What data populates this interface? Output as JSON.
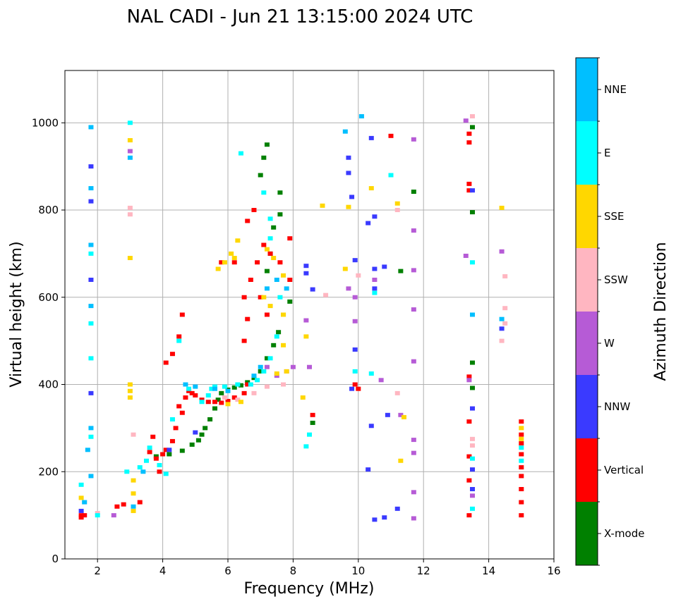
{
  "chart_data": {
    "type": "scatter",
    "title": "NAL CADI - Jun 21 13:15:00 2024 UTC",
    "xlabel": "Frequency (MHz)",
    "ylabel": "Virtual height (km)",
    "xlim": [
      1,
      16
    ],
    "ylim": [
      0,
      1120
    ],
    "xticks": [
      2,
      4,
      6,
      8,
      10,
      12,
      14,
      16
    ],
    "yticks": [
      0,
      200,
      400,
      600,
      800,
      1000
    ],
    "grid": true,
    "colorbar": {
      "label": "Azimuth Direction",
      "categories": [
        {
          "name": "X-mode",
          "color": "#008000"
        },
        {
          "name": "Vertical",
          "color": "#ff0000"
        },
        {
          "name": "NNW",
          "color": "#3a3aff"
        },
        {
          "name": "W",
          "color": "#b65bd6"
        },
        {
          "name": "SSW",
          "color": "#ffb6c1"
        },
        {
          "name": "SSE",
          "color": "#ffd700"
        },
        {
          "name": "E",
          "color": "#00ffff"
        },
        {
          "name": "NNE",
          "color": "#00bfff"
        }
      ]
    },
    "series": [
      {
        "name": "X-mode",
        "points": [
          [
            3.8,
            235
          ],
          [
            4.2,
            240
          ],
          [
            4.6,
            248
          ],
          [
            4.9,
            262
          ],
          [
            5.1,
            272
          ],
          [
            5.2,
            285
          ],
          [
            5.3,
            300
          ],
          [
            5.45,
            320
          ],
          [
            5.6,
            345
          ],
          [
            5.7,
            365
          ],
          [
            5.8,
            380
          ],
          [
            6.0,
            388
          ],
          [
            6.2,
            393
          ],
          [
            6.4,
            398
          ],
          [
            6.6,
            405
          ],
          [
            6.8,
            415
          ],
          [
            7.0,
            430
          ],
          [
            7.2,
            460
          ],
          [
            7.4,
            490
          ],
          [
            7.55,
            520
          ],
          [
            7.7,
            560
          ],
          [
            7.9,
            590
          ],
          [
            7.2,
            660
          ],
          [
            7.3,
            700
          ],
          [
            7.4,
            760
          ],
          [
            7.6,
            790
          ],
          [
            7.0,
            880
          ],
          [
            7.1,
            920
          ],
          [
            7.2,
            950
          ],
          [
            8.6,
            312
          ],
          [
            13.5,
            392
          ],
          [
            13.5,
            450
          ],
          [
            13.5,
            795
          ],
          [
            13.5,
            990
          ],
          [
            11.7,
            842
          ],
          [
            11.3,
            660
          ],
          [
            7.6,
            840
          ]
        ]
      },
      {
        "name": "Vertical",
        "points": [
          [
            1.5,
            100
          ],
          [
            1.5,
            95
          ],
          [
            3.3,
            130
          ],
          [
            3.6,
            245
          ],
          [
            3.7,
            280
          ],
          [
            3.8,
            230
          ],
          [
            3.9,
            200
          ],
          [
            4.0,
            240
          ],
          [
            4.1,
            250
          ],
          [
            4.3,
            270
          ],
          [
            4.4,
            300
          ],
          [
            4.5,
            350
          ],
          [
            4.6,
            335
          ],
          [
            4.7,
            370
          ],
          [
            4.8,
            385
          ],
          [
            4.9,
            380
          ],
          [
            5.0,
            375
          ],
          [
            5.2,
            365
          ],
          [
            5.4,
            360
          ],
          [
            5.6,
            360
          ],
          [
            5.8,
            358
          ],
          [
            6.0,
            362
          ],
          [
            6.2,
            370
          ],
          [
            6.5,
            380
          ],
          [
            6.6,
            400
          ],
          [
            6.5,
            500
          ],
          [
            6.6,
            550
          ],
          [
            6.5,
            600
          ],
          [
            6.7,
            640
          ],
          [
            6.9,
            680
          ],
          [
            7.1,
            720
          ],
          [
            7.3,
            700
          ],
          [
            7.6,
            680
          ],
          [
            7.0,
            600
          ],
          [
            7.2,
            560
          ],
          [
            7.9,
            640
          ],
          [
            7.9,
            735
          ],
          [
            6.6,
            775
          ],
          [
            6.8,
            800
          ],
          [
            5.8,
            680
          ],
          [
            6.2,
            680
          ],
          [
            4.3,
            470
          ],
          [
            4.1,
            450
          ],
          [
            4.5,
            510
          ],
          [
            4.6,
            560
          ],
          [
            13.4,
            100
          ],
          [
            13.4,
            180
          ],
          [
            13.4,
            235
          ],
          [
            13.4,
            315
          ],
          [
            13.4,
            418
          ],
          [
            13.4,
            845
          ],
          [
            13.4,
            860
          ],
          [
            13.4,
            955
          ],
          [
            13.4,
            975
          ],
          [
            11.0,
            970
          ],
          [
            15.0,
            100
          ],
          [
            15.0,
            130
          ],
          [
            15.0,
            160
          ],
          [
            15.0,
            190
          ],
          [
            15.0,
            210
          ],
          [
            15.0,
            240
          ],
          [
            15.0,
            265
          ],
          [
            15.0,
            285
          ],
          [
            15.0,
            315
          ],
          [
            1.6,
            100
          ],
          [
            9.9,
            400
          ],
          [
            10.0,
            390
          ],
          [
            8.6,
            330
          ],
          [
            2.6,
            120
          ],
          [
            2.8,
            125
          ]
        ]
      },
      {
        "name": "NNW",
        "points": [
          [
            1.5,
            110
          ],
          [
            1.8,
            900
          ],
          [
            1.8,
            820
          ],
          [
            1.8,
            640
          ],
          [
            1.8,
            380
          ],
          [
            4.2,
            250
          ],
          [
            5.0,
            290
          ],
          [
            8.4,
            672
          ],
          [
            8.4,
            655
          ],
          [
            8.6,
            618
          ],
          [
            9.7,
            885
          ],
          [
            9.8,
            830
          ],
          [
            9.9,
            685
          ],
          [
            9.9,
            480
          ],
          [
            10.3,
            770
          ],
          [
            10.5,
            785
          ],
          [
            10.5,
            665
          ],
          [
            10.8,
            670
          ],
          [
            10.5,
            620
          ],
          [
            10.4,
            965
          ],
          [
            9.7,
            920
          ],
          [
            10.4,
            305
          ],
          [
            10.9,
            330
          ],
          [
            10.5,
            90
          ],
          [
            10.8,
            95
          ],
          [
            11.2,
            115
          ],
          [
            13.5,
            160
          ],
          [
            13.5,
            205
          ],
          [
            13.5,
            345
          ],
          [
            13.5,
            845
          ],
          [
            14.4,
            528
          ],
          [
            10.3,
            205
          ],
          [
            9.8,
            390
          ]
        ]
      },
      {
        "name": "W",
        "points": [
          [
            2.5,
            100
          ],
          [
            3.0,
            935
          ],
          [
            7.5,
            420
          ],
          [
            7.8,
            430
          ],
          [
            8.0,
            440
          ],
          [
            8.5,
            440
          ],
          [
            8.4,
            547
          ],
          [
            9.7,
            620
          ],
          [
            9.9,
            545
          ],
          [
            9.9,
            600
          ],
          [
            10.5,
            640
          ],
          [
            10.7,
            410
          ],
          [
            11.3,
            330
          ],
          [
            11.7,
            962
          ],
          [
            11.7,
            753
          ],
          [
            11.7,
            662
          ],
          [
            11.7,
            572
          ],
          [
            11.7,
            453
          ],
          [
            11.7,
            273
          ],
          [
            11.7,
            243
          ],
          [
            11.7,
            153
          ],
          [
            11.7,
            93
          ],
          [
            13.3,
            695
          ],
          [
            13.3,
            1005
          ],
          [
            13.4,
            410
          ],
          [
            13.5,
            145
          ],
          [
            14.4,
            705
          ],
          [
            7.2,
            440
          ]
        ]
      },
      {
        "name": "SSW",
        "points": [
          [
            1.6,
            130
          ],
          [
            3.0,
            790
          ],
          [
            3.0,
            805
          ],
          [
            3.1,
            285
          ],
          [
            5.9,
            370
          ],
          [
            6.3,
            365
          ],
          [
            6.8,
            380
          ],
          [
            7.2,
            395
          ],
          [
            7.7,
            400
          ],
          [
            9.0,
            605
          ],
          [
            10.0,
            650
          ],
          [
            11.2,
            380
          ],
          [
            11.2,
            800
          ],
          [
            13.5,
            275
          ],
          [
            13.5,
            260
          ],
          [
            14.5,
            648
          ],
          [
            14.5,
            575
          ],
          [
            14.5,
            540
          ],
          [
            14.4,
            500
          ],
          [
            13.5,
            1015
          ],
          [
            2.0,
            105
          ]
        ]
      },
      {
        "name": "SSE",
        "points": [
          [
            1.5,
            140
          ],
          [
            3.0,
            400
          ],
          [
            3.0,
            385
          ],
          [
            3.0,
            370
          ],
          [
            3.1,
            180
          ],
          [
            3.1,
            150
          ],
          [
            3.1,
            110
          ],
          [
            3.0,
            690
          ],
          [
            3.0,
            960
          ],
          [
            5.7,
            665
          ],
          [
            5.9,
            680
          ],
          [
            6.1,
            700
          ],
          [
            6.3,
            730
          ],
          [
            6.2,
            690
          ],
          [
            6.4,
            360
          ],
          [
            6.0,
            355
          ],
          [
            7.2,
            710
          ],
          [
            7.4,
            690
          ],
          [
            7.7,
            650
          ],
          [
            7.7,
            560
          ],
          [
            7.7,
            490
          ],
          [
            7.8,
            430
          ],
          [
            7.5,
            425
          ],
          [
            8.3,
            370
          ],
          [
            8.4,
            510
          ],
          [
            8.9,
            810
          ],
          [
            9.6,
            665
          ],
          [
            9.7,
            807
          ],
          [
            10.4,
            850
          ],
          [
            11.2,
            815
          ],
          [
            11.4,
            325
          ],
          [
            11.3,
            225
          ],
          [
            14.4,
            805
          ],
          [
            15.0,
            300
          ],
          [
            15.0,
            275
          ],
          [
            7.1,
            600
          ],
          [
            7.3,
            580
          ]
        ]
      },
      {
        "name": "E",
        "points": [
          [
            1.5,
            170
          ],
          [
            1.8,
            700
          ],
          [
            1.8,
            540
          ],
          [
            1.8,
            460
          ],
          [
            1.8,
            280
          ],
          [
            2.9,
            200
          ],
          [
            3.3,
            210
          ],
          [
            3.5,
            225
          ],
          [
            3.6,
            255
          ],
          [
            3.9,
            215
          ],
          [
            4.1,
            195
          ],
          [
            4.3,
            320
          ],
          [
            4.5,
            500
          ],
          [
            4.8,
            390
          ],
          [
            5.2,
            360
          ],
          [
            5.4,
            375
          ],
          [
            5.5,
            390
          ],
          [
            5.6,
            395
          ],
          [
            5.9,
            395
          ],
          [
            6.3,
            400
          ],
          [
            6.7,
            400
          ],
          [
            6.9,
            410
          ],
          [
            7.1,
            430
          ],
          [
            7.3,
            460
          ],
          [
            7.5,
            510
          ],
          [
            7.6,
            600
          ],
          [
            7.3,
            780
          ],
          [
            7.1,
            840
          ],
          [
            7.3,
            735
          ],
          [
            6.4,
            930
          ],
          [
            8.5,
            285
          ],
          [
            8.4,
            258
          ],
          [
            9.9,
            430
          ],
          [
            10.4,
            425
          ],
          [
            10.5,
            610
          ],
          [
            11.0,
            880
          ],
          [
            13.5,
            230
          ],
          [
            13.5,
            115
          ],
          [
            13.5,
            680
          ],
          [
            15.0,
            255
          ],
          [
            15.0,
            225
          ],
          [
            2.0,
            100
          ],
          [
            3.0,
            1000
          ]
        ]
      },
      {
        "name": "NNE",
        "points": [
          [
            1.6,
            130
          ],
          [
            1.8,
            990
          ],
          [
            1.8,
            850
          ],
          [
            1.8,
            720
          ],
          [
            1.8,
            580
          ],
          [
            1.8,
            300
          ],
          [
            1.8,
            190
          ],
          [
            3.0,
            920
          ],
          [
            3.1,
            120
          ],
          [
            3.4,
            200
          ],
          [
            4.7,
            400
          ],
          [
            5.0,
            395
          ],
          [
            5.6,
            390
          ],
          [
            6.0,
            385
          ],
          [
            6.8,
            420
          ],
          [
            7.0,
            440
          ],
          [
            7.2,
            620
          ],
          [
            7.5,
            640
          ],
          [
            7.8,
            620
          ],
          [
            9.6,
            980
          ],
          [
            10.1,
            1015
          ],
          [
            13.5,
            560
          ],
          [
            14.4,
            550
          ],
          [
            1.7,
            250
          ]
        ]
      }
    ]
  }
}
